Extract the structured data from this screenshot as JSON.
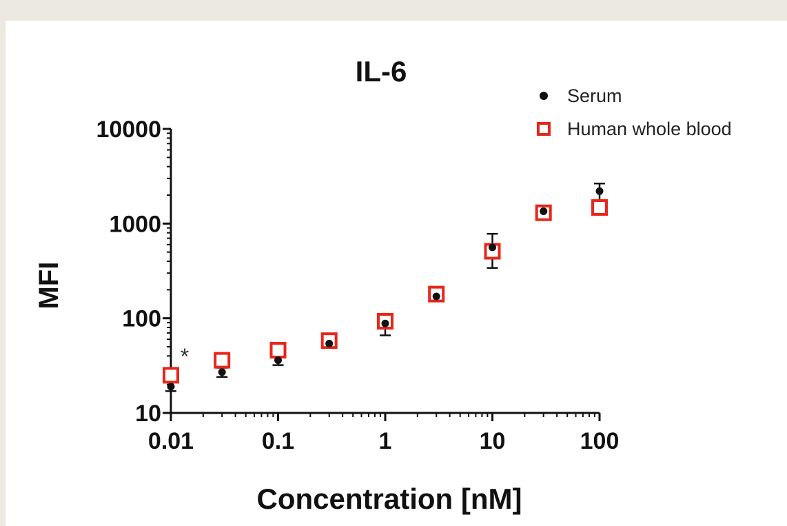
{
  "chart_data": {
    "type": "scatter",
    "title": "IL-6",
    "xlabel": "Concentration [nM]",
    "ylabel": "MFI",
    "x_scale": "log",
    "y_scale": "log",
    "xlim": [
      0.01,
      100
    ],
    "ylim": [
      10,
      10000
    ],
    "x_ticks": [
      "0.01",
      "0.1",
      "1",
      "10",
      "100"
    ],
    "y_ticks": [
      "10",
      "100",
      "1000",
      "10000"
    ],
    "legend": "top-right",
    "annotation": "*",
    "series": [
      {
        "name": "Serum",
        "marker": "filled-circle",
        "color": "#111111",
        "x": [
          0.01,
          0.03,
          0.1,
          0.3,
          1,
          3,
          10,
          30,
          100
        ],
        "y": [
          19,
          27,
          36,
          54,
          88,
          170,
          560,
          1350,
          2200
        ],
        "err": [
          2,
          3,
          4,
          4,
          22,
          18,
          220,
          120,
          450
        ]
      },
      {
        "name": "Human whole blood",
        "marker": "open-square",
        "color": "#e8261b",
        "x": [
          0.01,
          0.03,
          0.1,
          0.3,
          1,
          3,
          10,
          30,
          100
        ],
        "y": [
          25,
          36,
          46,
          58,
          93,
          180,
          510,
          1300,
          1480
        ],
        "err": [
          0,
          0,
          5,
          3,
          8,
          20,
          60,
          60,
          80
        ]
      }
    ]
  }
}
